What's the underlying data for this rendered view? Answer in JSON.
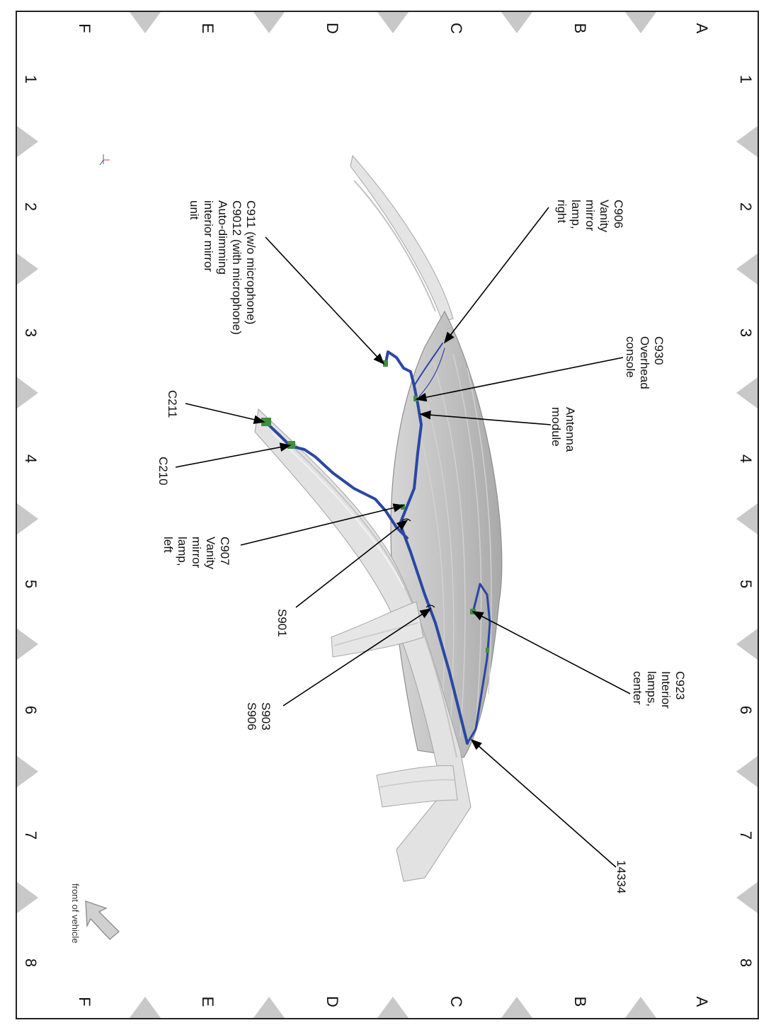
{
  "grid": {
    "rows": [
      "A",
      "B",
      "C",
      "D",
      "E",
      "F"
    ],
    "cols": [
      "1",
      "2",
      "3",
      "4",
      "5",
      "6",
      "7",
      "8"
    ]
  },
  "callouts": {
    "c906": [
      "C906",
      "Vanity",
      "mirror",
      "lamp,",
      "right"
    ],
    "c930": [
      "C930",
      "Overhead",
      "console"
    ],
    "antenna": [
      "Antenna",
      "module"
    ],
    "c923": [
      "C923",
      "Interior",
      "lamps,",
      "center"
    ],
    "n14334": [
      "14334"
    ],
    "c911": [
      "C911  (w/o microphone)",
      "C9012  (with microphone)",
      "Auto-dimming",
      "interior mirror",
      "unit"
    ],
    "c211": [
      "C211"
    ],
    "c210": [
      "C210"
    ],
    "c907": [
      "C907",
      "Vanity",
      "mirror",
      "lamp,",
      "left"
    ],
    "s901": [
      "S901"
    ],
    "s903": [
      "S903",
      "S906"
    ]
  },
  "front_label": "front of vehicle",
  "colors": {
    "harness": "#2a47a3",
    "connector": "#3f8f3f",
    "roof": "#b9b9b9",
    "frame": "#c8c8c8",
    "marker": "#c8c8c8"
  }
}
